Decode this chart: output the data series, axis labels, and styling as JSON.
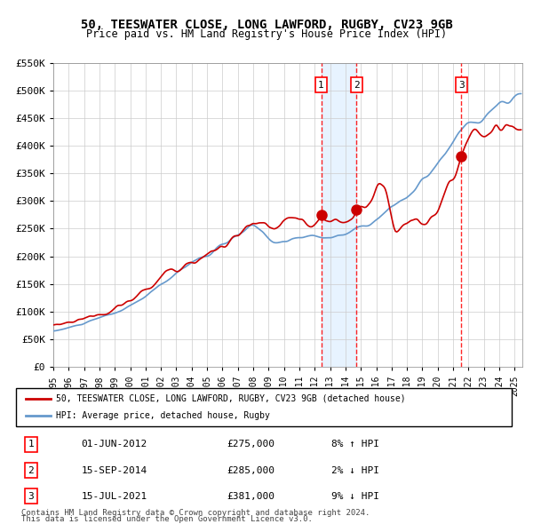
{
  "title": "50, TEESWATER CLOSE, LONG LAWFORD, RUGBY, CV23 9GB",
  "subtitle": "Price paid vs. HM Land Registry's House Price Index (HPI)",
  "x_start_year": 1995,
  "x_end_year": 2025,
  "y_min": 0,
  "y_max": 550000,
  "y_ticks": [
    0,
    50000,
    100000,
    150000,
    200000,
    250000,
    300000,
    350000,
    400000,
    450000,
    500000,
    550000
  ],
  "y_tick_labels": [
    "£0",
    "£50K",
    "£100K",
    "£150K",
    "£200K",
    "£250K",
    "£300K",
    "£350K",
    "£400K",
    "£450K",
    "£500K",
    "£550K"
  ],
  "sale_color": "#cc0000",
  "hpi_color": "#6699cc",
  "hpi_fill_color": "#ddeeff",
  "grid_color": "#cccccc",
  "bg_color": "#ffffff",
  "legend_box_color": "#000000",
  "sale_label": "50, TEESWATER CLOSE, LONG LAWFORD, RUGBY, CV23 9GB (detached house)",
  "hpi_label": "HPI: Average price, detached house, Rugby",
  "sales": [
    {
      "num": 1,
      "date_year": 2012.42,
      "price": 275000,
      "label": "01-JUN-2012",
      "pct": "8%",
      "dir": "↑"
    },
    {
      "num": 2,
      "date_year": 2014.71,
      "price": 285000,
      "label": "15-SEP-2014",
      "pct": "2%",
      "dir": "↓"
    },
    {
      "num": 3,
      "date_year": 2021.54,
      "price": 381000,
      "label": "15-JUL-2021",
      "pct": "9%",
      "dir": "↓"
    }
  ],
  "footnote1": "Contains HM Land Registry data © Crown copyright and database right 2024.",
  "footnote2": "This data is licensed under the Open Government Licence v3.0.",
  "shaded_region": [
    2012.42,
    2014.71
  ]
}
